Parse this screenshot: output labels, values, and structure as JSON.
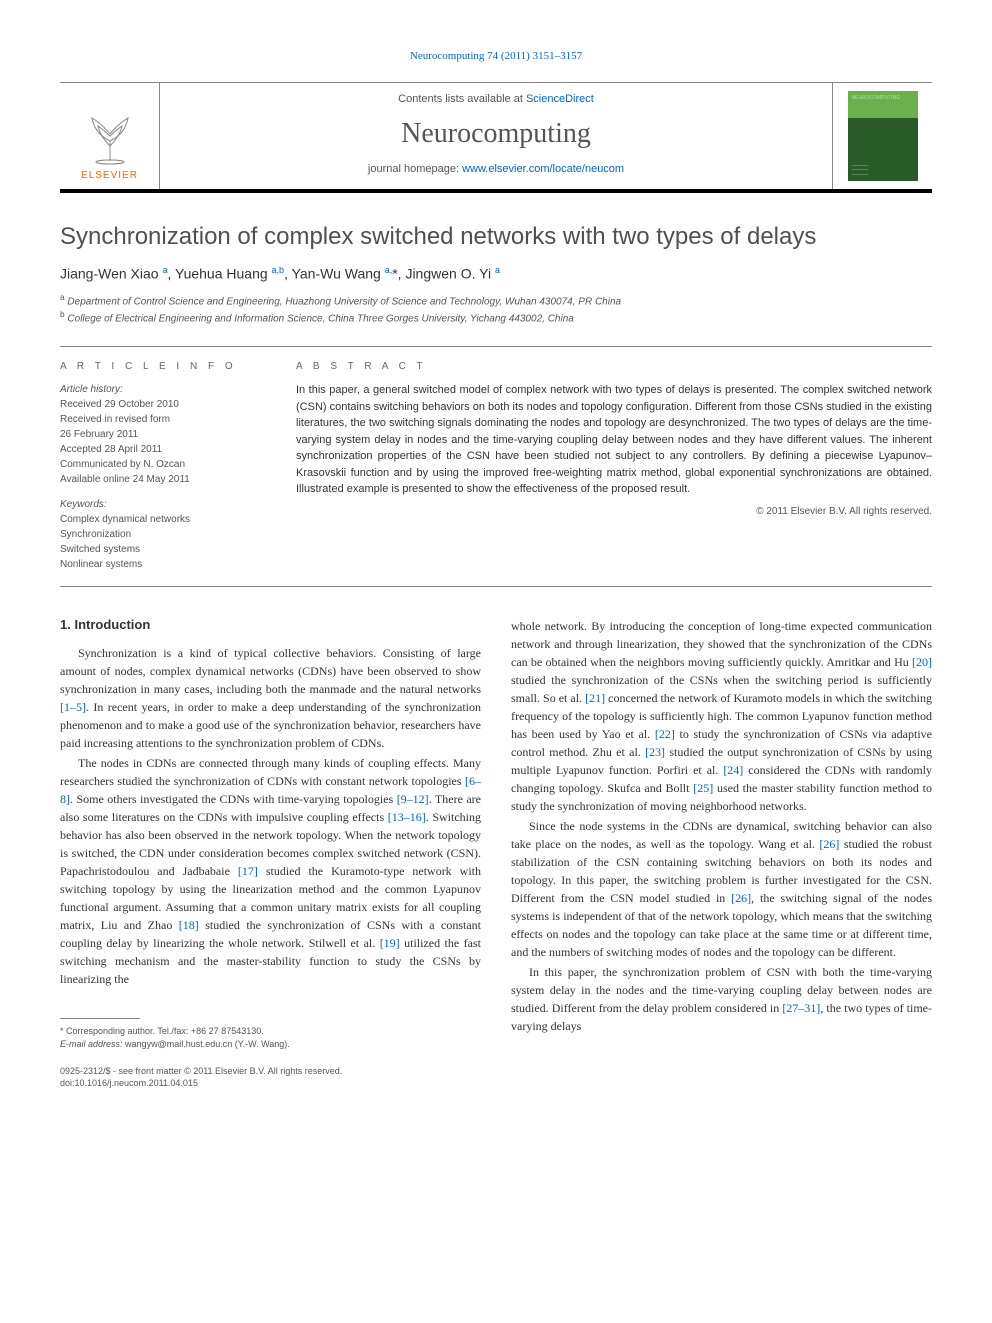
{
  "colors": {
    "link": "#0066cc",
    "text": "#333333",
    "muted": "#555555",
    "elsevier_orange": "#ff6600",
    "rule": "#888888",
    "cover_top": "#6ab04c",
    "cover_bottom": "#2a5a2a"
  },
  "header": {
    "citation": "Neurocomputing 74 (2011) 3151–3157",
    "contents_prefix": "Contents lists available at ",
    "contents_link": "ScienceDirect",
    "journal_name": "Neurocomputing",
    "homepage_prefix": "journal homepage: ",
    "homepage_url": "www.elsevier.com/locate/neucom",
    "publisher_mark": "ELSEVIER",
    "cover_label": "NEUROCOMPUTING"
  },
  "article": {
    "title": "Synchronization of complex switched networks with two types of delays",
    "authors_html": "Jiang-Wen Xiao <sup>a</sup>, Yuehua Huang <sup>a,b</sup>, Yan-Wu Wang <sup>a,</sup><span class='star'>*</span>, Jingwen O. Yi <sup>a</sup>",
    "affiliations": [
      {
        "mark": "a",
        "text": "Department of Control Science and Engineering, Huazhong University of Science and Technology, Wuhan 430074, PR China"
      },
      {
        "mark": "b",
        "text": "College of Electrical Engineering and Information Science, China Three Gorges University, Yichang 443002, China"
      }
    ]
  },
  "info": {
    "heading": "A R T I C L E   I N F O",
    "history_label": "Article history:",
    "history": [
      "Received 29 October 2010",
      "Received in revised form",
      "26 February 2011",
      "Accepted 28 April 2011",
      "Communicated by N. Ozcan",
      "Available online 24 May 2011"
    ],
    "keywords_label": "Keywords:",
    "keywords": [
      "Complex dynamical networks",
      "Synchronization",
      "Switched systems",
      "Nonlinear systems"
    ]
  },
  "abstract": {
    "heading": "A B S T R A C T",
    "text": "In this paper, a general switched model of complex network with two types of delays is presented. The complex switched network (CSN) contains switching behaviors on both its nodes and topology configuration. Different from those CSNs studied in the existing literatures, the two switching signals dominating the nodes and topology are desynchronized. The two types of delays are the time-varying system delay in nodes and the time-varying coupling delay between nodes and they have different values. The inherent synchronization properties of the CSN have been studied not subject to any controllers. By defining a piecewise Lyapunov–Krasovskii function and by using the improved free-weighting matrix method, global exponential synchronizations are obtained. Illustrated example is presented to show the effectiveness of the proposed result.",
    "copyright": "© 2011 Elsevier B.V. All rights reserved."
  },
  "body": {
    "section_heading": "1.  Introduction",
    "left_paragraphs": [
      "Synchronization is a kind of typical collective behaviors. Consisting of large amount of nodes, complex dynamical networks (CDNs) have been observed to show synchronization in many cases, including both the manmade and the natural networks <span class='ref'>[1–5]</span>. In recent years, in order to make a deep understanding of the synchronization phenomenon and to make a good use of the synchronization behavior, researchers have paid increasing attentions to the synchronization problem of CDNs.",
      "The nodes in CDNs are connected through many kinds of coupling effects. Many researchers studied the synchronization of CDNs with constant network topologies <span class='ref'>[6–8]</span>. Some others investigated the CDNs with time-varying topologies <span class='ref'>[9–12]</span>. There are also some literatures on the CDNs with impulsive coupling effects <span class='ref'>[13–16]</span>. Switching behavior has also been observed in the network topology. When the network topology is switched, the CDN under consideration becomes complex switched network (CSN). Papachristodoulou and Jadbabaie <span class='ref'>[17]</span> studied the Kuramoto-type network with switching topology by using the linearization method and the common Lyapunov functional argument. Assuming that a common unitary matrix exists for all coupling matrix, Liu and Zhao <span class='ref'>[18]</span> studied the synchronization of CSNs with a constant coupling delay by linearizing the whole network. Stilwell et al. <span class='ref'>[19]</span> utilized the fast switching mechanism and the master-stability function to study the CSNs by linearizing the"
    ],
    "right_paragraphs": [
      "whole network. By introducing the conception of long-time expected communication network and through linearization, they showed that the synchronization of the CDNs can be obtained when the neighbors moving sufficiently quickly. Amritkar and Hu <span class='ref'>[20]</span> studied the synchronization of the CSNs when the switching period is sufficiently small. So et al. <span class='ref'>[21]</span> concerned the network of Kuramoto models in which the switching frequency of the topology is sufficiently high. The common Lyapunov function method has been used by Yao et al. <span class='ref'>[22]</span> to study the synchronization of CSNs via adaptive control method. Zhu et al. <span class='ref'>[23]</span> studied the output synchronization of CSNs by using multiple Lyapunov function. Porfiri et al. <span class='ref'>[24]</span> considered the CDNs with randomly changing topology. Skufca and Bollt <span class='ref'>[25]</span> used the master stability function method to study the synchronization of moving neighborhood networks.",
      "Since the node systems in the CDNs are dynamical, switching behavior can also take place on the nodes, as well as the topology. Wang et al. <span class='ref'>[26]</span> studied the robust stabilization of the CSN containing switching behaviors on both its nodes and topology. In this paper, the switching problem is further investigated for the CSN. Different from the CSN model studied in <span class='ref'>[26]</span>, the switching signal of the nodes systems is independent of that of the network topology, which means that the switching effects on nodes and the topology can take place at the same time or at different time, and the numbers of switching modes of nodes and the topology can be different.",
      "In this paper, the synchronization problem of CSN with both the time-varying system delay in the nodes and the time-varying coupling delay between nodes are studied. Different from the delay problem considered in <span class='ref'>[27–31]</span>, the two types of time-varying delays"
    ]
  },
  "footnote": {
    "corr_label": "* Corresponding author. Tel./fax: +86 27 87543130.",
    "email_label": "E-mail address:",
    "email": "wangyw@mail.hust.edu.cn (Y.-W. Wang)."
  },
  "footer": {
    "issn_line": "0925-2312/$ - see front matter © 2011 Elsevier B.V. All rights reserved.",
    "doi_line": "doi:10.1016/j.neucom.2011.04.015"
  }
}
